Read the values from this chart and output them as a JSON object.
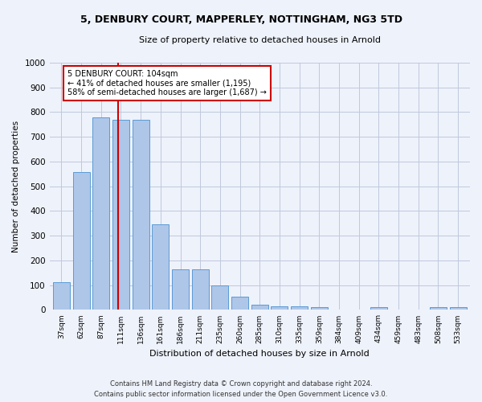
{
  "title1": "5, DENBURY COURT, MAPPERLEY, NOTTINGHAM, NG3 5TD",
  "title2": "Size of property relative to detached houses in Arnold",
  "xlabel": "Distribution of detached houses by size in Arnold",
  "ylabel": "Number of detached properties",
  "bar_categories": [
    "37sqm",
    "62sqm",
    "87sqm",
    "111sqm",
    "136sqm",
    "161sqm",
    "186sqm",
    "211sqm",
    "235sqm",
    "260sqm",
    "285sqm",
    "310sqm",
    "335sqm",
    "359sqm",
    "384sqm",
    "409sqm",
    "434sqm",
    "459sqm",
    "483sqm",
    "508sqm",
    "533sqm"
  ],
  "bar_values": [
    113,
    558,
    778,
    770,
    770,
    345,
    165,
    165,
    98,
    55,
    20,
    15,
    15,
    12,
    0,
    0,
    12,
    0,
    0,
    12,
    12
  ],
  "bar_color": "#aec6e8",
  "bar_edge_color": "#5b9bd5",
  "bg_color": "#eef2fb",
  "grid_color": "#c0c8dc",
  "vline_pos": 2.85,
  "vline_color": "#cc0000",
  "annotation_text": "5 DENBURY COURT: 104sqm\n← 41% of detached houses are smaller (1,195)\n58% of semi-detached houses are larger (1,687) →",
  "annotation_box_color": "#ffffff",
  "annotation_box_edge": "#cc0000",
  "footer1": "Contains HM Land Registry data © Crown copyright and database right 2024.",
  "footer2": "Contains public sector information licensed under the Open Government Licence v3.0.",
  "ylim": [
    0,
    1000
  ],
  "yticks": [
    0,
    100,
    200,
    300,
    400,
    500,
    600,
    700,
    800,
    900,
    1000
  ]
}
